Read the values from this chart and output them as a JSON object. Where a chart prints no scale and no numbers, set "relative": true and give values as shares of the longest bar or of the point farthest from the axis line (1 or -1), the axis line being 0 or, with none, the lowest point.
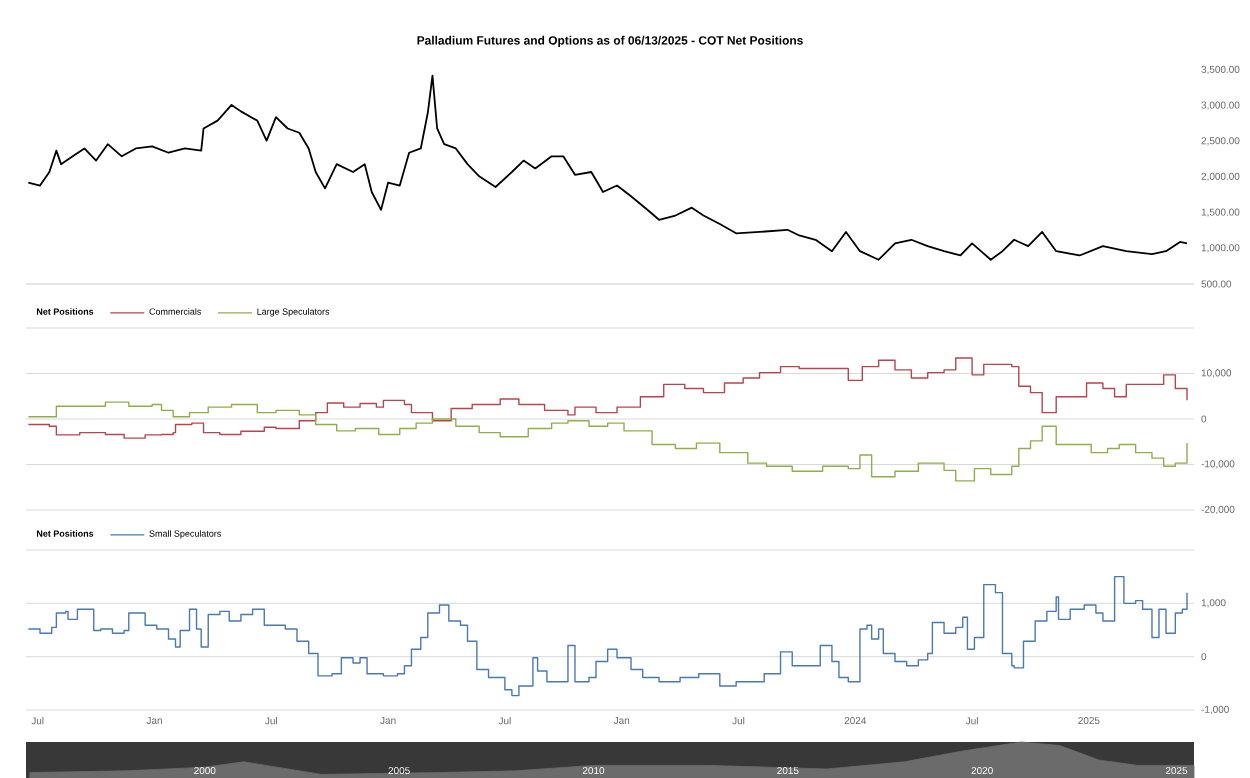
{
  "chart_data": [
    {
      "type": "line",
      "title": "Palladium Futures and Options as of 06/13/2025 - COT Net Positions",
      "xlim": [
        2020.45,
        2025.45
      ],
      "ylim": [
        500,
        3500
      ],
      "yticks": [
        {
          "value": 500,
          "label": "500.00"
        },
        {
          "value": 1000,
          "label": "1,000.00"
        },
        {
          "value": 1500,
          "label": "1,500.00"
        },
        {
          "value": 2000,
          "label": "2,000.00"
        },
        {
          "value": 2500,
          "label": "2,500.00"
        },
        {
          "value": 3000,
          "label": "3,000.00"
        },
        {
          "value": 3500,
          "label": "3,500.00"
        }
      ],
      "tick_labels": "y",
      "series": [
        {
          "color": "#000000",
          "x": [
            2020.46,
            2020.51,
            2020.55,
            2020.58,
            2020.6,
            2020.65,
            2020.7,
            2020.75,
            2020.8,
            2020.86,
            2020.92,
            2020.99,
            2021.06,
            2021.13,
            2021.2,
            2021.21,
            2021.27,
            2021.33,
            2021.37,
            2021.44,
            2021.48,
            2021.52,
            2021.57,
            2021.62,
            2021.66,
            2021.69,
            2021.73,
            2021.78,
            2021.85,
            2021.9,
            2021.93,
            2021.97,
            2022.0,
            2022.05,
            2022.09,
            2022.14,
            2022.17,
            2022.19,
            2022.21,
            2022.24,
            2022.29,
            2022.34,
            2022.39,
            2022.46,
            2022.53,
            2022.58,
            2022.63,
            2022.7,
            2022.75,
            2022.8,
            2022.87,
            2022.92,
            2022.98,
            2023.04,
            2023.11,
            2023.16,
            2023.23,
            2023.3,
            2023.35,
            2023.42,
            2023.49,
            2023.59,
            2023.71,
            2023.76,
            2023.83,
            2023.9,
            2023.96,
            2024.02,
            2024.1,
            2024.17,
            2024.24,
            2024.31,
            2024.38,
            2024.45,
            2024.5,
            2024.58,
            2024.63,
            2024.68,
            2024.74,
            2024.8,
            2024.86,
            2024.96,
            2025.06,
            2025.16,
            2025.27,
            2025.33,
            2025.39,
            2025.42
          ],
          "values": [
            1920,
            1880,
            2070,
            2370,
            2180,
            2290,
            2400,
            2230,
            2460,
            2290,
            2400,
            2430,
            2340,
            2400,
            2370,
            2680,
            2790,
            3010,
            2920,
            2790,
            2510,
            2840,
            2680,
            2620,
            2400,
            2070,
            1840,
            2180,
            2070,
            2180,
            1790,
            1540,
            1920,
            1880,
            2340,
            2400,
            2900,
            3420,
            2680,
            2460,
            2400,
            2180,
            2010,
            1860,
            2070,
            2230,
            2120,
            2290,
            2290,
            2030,
            2070,
            1790,
            1880,
            1730,
            1540,
            1400,
            1460,
            1570,
            1460,
            1340,
            1210,
            1230,
            1260,
            1180,
            1120,
            960,
            1230,
            960,
            840,
            1070,
            1120,
            1030,
            960,
            900,
            1070,
            840,
            960,
            1120,
            1030,
            1230,
            960,
            900,
            1030,
            960,
            920,
            960,
            1090,
            1070
          ]
        }
      ]
    },
    {
      "type": "step",
      "legend_title": "Net Positions",
      "legend": "top left",
      "grid": "y",
      "xlim": [
        2020.45,
        2025.45
      ],
      "ylim": [
        -20000,
        20000
      ],
      "yticks": [
        {
          "value": -20000,
          "label": "-20,000"
        },
        {
          "value": -10000,
          "label": "-10,000"
        },
        0,
        {
          "value": 10000,
          "label": "10,000"
        },
        {
          "value": 20000,
          "label": null
        }
      ],
      "tick_labels": "y",
      "series": [
        {
          "name": "Commercials",
          "color": "#b5454e",
          "x": [
            2020.46,
            2020.55,
            2020.58,
            2020.68,
            2020.79,
            2020.87,
            2020.96,
            2021.03,
            2021.08,
            2021.09,
            2021.16,
            2021.21,
            2021.28,
            2021.37,
            2021.47,
            2021.52,
            2021.62,
            2021.69,
            2021.74,
            2021.81,
            2021.88,
            2021.95,
            2021.98,
            2022.07,
            2022.1,
            2022.19,
            2022.27,
            2022.36,
            2022.48,
            2022.56,
            2022.67,
            2022.77,
            2022.8,
            2022.89,
            2022.98,
            2023.08,
            2023.18,
            2023.27,
            2023.35,
            2023.44,
            2023.52,
            2023.59,
            2023.68,
            2023.76,
            2023.86,
            2023.97,
            2024.03,
            2024.1,
            2024.17,
            2024.24,
            2024.31,
            2024.38,
            2024.43,
            2024.5,
            2024.55,
            2024.67,
            2024.7,
            2024.75,
            2024.8,
            2024.86,
            2024.92,
            2024.99,
            2025.06,
            2025.11,
            2025.16,
            2025.27,
            2025.32,
            2025.37,
            2025.42
          ],
          "values": [
            -1200,
            -1600,
            -3500,
            -3000,
            -3400,
            -4200,
            -3500,
            -3400,
            -3000,
            -1200,
            -900,
            -3000,
            -3400,
            -2700,
            -1800,
            -2100,
            -400,
            1400,
            3500,
            2600,
            3400,
            2600,
            4100,
            3200,
            1400,
            -400,
            2300,
            3200,
            4400,
            3200,
            1900,
            900,
            2600,
            1400,
            2600,
            4900,
            7600,
            6700,
            5800,
            7900,
            9000,
            10200,
            11500,
            11100,
            11100,
            8500,
            11500,
            12900,
            10800,
            9000,
            10200,
            10800,
            13400,
            9700,
            12000,
            11500,
            7200,
            5800,
            1400,
            4900,
            4900,
            7900,
            6700,
            4900,
            7600,
            7600,
            9700,
            6700,
            4100
          ]
        },
        {
          "name": "Large Speculators",
          "color": "#8fae4a",
          "x": [
            2020.46,
            2020.51,
            2020.58,
            2020.68,
            2020.79,
            2020.89,
            2020.99,
            2021.03,
            2021.08,
            2021.15,
            2021.23,
            2021.33,
            2021.44,
            2021.52,
            2021.62,
            2021.69,
            2021.78,
            2021.86,
            2021.96,
            2022.05,
            2022.12,
            2022.19,
            2022.29,
            2022.39,
            2022.48,
            2022.6,
            2022.7,
            2022.77,
            2022.86,
            2022.94,
            2023.01,
            2023.13,
            2023.23,
            2023.32,
            2023.42,
            2023.54,
            2023.62,
            2023.73,
            2023.86,
            2023.97,
            2024.02,
            2024.07,
            2024.17,
            2024.27,
            2024.38,
            2024.43,
            2024.51,
            2024.58,
            2024.67,
            2024.7,
            2024.75,
            2024.8,
            2024.86,
            2024.92,
            2025.01,
            2025.08,
            2025.13,
            2025.2,
            2025.27,
            2025.32,
            2025.37,
            2025.42
          ],
          "values": [
            500,
            500,
            2800,
            2800,
            3700,
            2800,
            3200,
            1900,
            500,
            1400,
            2600,
            3200,
            1400,
            1900,
            900,
            -1200,
            -2600,
            -2100,
            -3400,
            -2100,
            -900,
            0,
            -1600,
            -3000,
            -3900,
            -2100,
            -900,
            -400,
            -1600,
            -900,
            -2600,
            -5600,
            -6500,
            -5300,
            -7400,
            -9700,
            -10400,
            -11500,
            -10400,
            -10900,
            -7900,
            -12700,
            -11500,
            -9700,
            -11300,
            -13600,
            -10900,
            -12200,
            -10400,
            -6500,
            -4800,
            -1600,
            -5600,
            -5600,
            -7400,
            -6500,
            -5600,
            -7400,
            -8600,
            -10400,
            -9700,
            -5300
          ]
        }
      ]
    },
    {
      "type": "step",
      "legend_title": "Net Positions",
      "legend": "top left",
      "grid": "y",
      "xlim": [
        2020.45,
        2025.45
      ],
      "xticks": [
        {
          "value": 2020.5,
          "label": "Jul"
        },
        {
          "value": 2021.0,
          "label": "Jan"
        },
        {
          "value": 2021.5,
          "label": "Jul"
        },
        {
          "value": 2022.0,
          "label": "Jan"
        },
        {
          "value": 2022.5,
          "label": "Jul"
        },
        {
          "value": 2023.0,
          "label": "Jan"
        },
        {
          "value": 2023.5,
          "label": "Jul"
        },
        {
          "value": 2024.0,
          "label": "2024"
        },
        {
          "value": 2024.5,
          "label": "Jul"
        },
        {
          "value": 2025.0,
          "label": "2025"
        }
      ],
      "ylim": [
        -1000,
        2000
      ],
      "yticks": [
        {
          "value": -1000,
          "label": "-1,000"
        },
        0,
        {
          "value": 1000,
          "label": "1,000"
        },
        {
          "value": 2000,
          "label": null
        }
      ],
      "series": [
        {
          "name": "Small Speculators",
          "color": "#4a78b0",
          "x": [
            2020.46,
            2020.51,
            2020.56,
            2020.58,
            2020.62,
            2020.63,
            2020.67,
            2020.72,
            2020.74,
            2020.77,
            2020.82,
            2020.87,
            2020.89,
            2020.94,
            2020.96,
            2021.01,
            2021.06,
            2021.09,
            2021.11,
            2021.15,
            2021.18,
            2021.2,
            2021.23,
            2021.28,
            2021.32,
            2021.37,
            2021.42,
            2021.47,
            2021.56,
            2021.61,
            2021.66,
            2021.7,
            2021.76,
            2021.8,
            2021.85,
            2021.88,
            2021.91,
            2021.98,
            2022.04,
            2022.07,
            2022.1,
            2022.14,
            2022.17,
            2022.22,
            2022.26,
            2022.31,
            2022.34,
            2022.38,
            2022.43,
            2022.5,
            2022.53,
            2022.56,
            2022.62,
            2022.64,
            2022.68,
            2022.74,
            2022.77,
            2022.8,
            2022.86,
            2022.89,
            2022.94,
            2022.98,
            2023.04,
            2023.09,
            2023.16,
            2023.25,
            2023.33,
            2023.42,
            2023.49,
            2023.56,
            2023.61,
            2023.68,
            2023.73,
            2023.8,
            2023.85,
            2023.9,
            2023.93,
            2023.97,
            2024.02,
            2024.05,
            2024.07,
            2024.1,
            2024.12,
            2024.17,
            2024.22,
            2024.27,
            2024.31,
            2024.33,
            2024.38,
            2024.43,
            2024.46,
            2024.48,
            2024.51,
            2024.55,
            2024.6,
            2024.63,
            2024.67,
            2024.68,
            2024.72,
            2024.77,
            2024.82,
            2024.86,
            2024.87,
            2024.92,
            2024.98,
            2025.03,
            2025.06,
            2025.11,
            2025.15,
            2025.2,
            2025.23,
            2025.27,
            2025.3,
            2025.33,
            2025.37,
            2025.4,
            2025.42
          ],
          "values": [
            520,
            440,
            550,
            820,
            850,
            700,
            890,
            890,
            490,
            520,
            440,
            490,
            820,
            820,
            590,
            520,
            330,
            180,
            490,
            890,
            520,
            180,
            790,
            850,
            670,
            790,
            890,
            590,
            520,
            290,
            60,
            -360,
            -320,
            -20,
            -120,
            -20,
            -320,
            -360,
            -320,
            -170,
            140,
            360,
            820,
            970,
            670,
            590,
            290,
            -240,
            -390,
            -620,
            -730,
            -550,
            -20,
            -270,
            -470,
            -470,
            210,
            -470,
            -390,
            -90,
            140,
            -20,
            -240,
            -390,
            -470,
            -390,
            -320,
            -550,
            -470,
            -470,
            -320,
            90,
            -170,
            -170,
            210,
            -90,
            -390,
            -470,
            520,
            590,
            330,
            520,
            60,
            -90,
            -170,
            -60,
            60,
            640,
            440,
            550,
            740,
            140,
            360,
            1350,
            1200,
            60,
            -170,
            -210,
            290,
            670,
            850,
            1120,
            700,
            890,
            970,
            820,
            670,
            1500,
            1000,
            1050,
            890,
            360,
            890,
            440,
            820,
            890,
            1200
          ]
        }
      ]
    },
    {
      "type": "area",
      "relative": true,
      "xlim": [
        1995.4,
        2025.45
      ],
      "xticks": [
        2000,
        2005,
        2010,
        2015,
        2020,
        2025
      ],
      "tick_labels": "x",
      "series": [
        {
          "color": "#6b6b6b",
          "x": [
            1995.5,
            1998,
            2000,
            2001,
            2003,
            2006,
            2008,
            2010,
            2013,
            2016,
            2018,
            2019.5,
            2021,
            2022,
            2023,
            2024,
            2025.45
          ],
          "values": [
            0.15,
            0.2,
            0.3,
            0.45,
            0.1,
            0.15,
            0.2,
            0.35,
            0.35,
            0.25,
            0.45,
            0.75,
            1.0,
            0.9,
            0.5,
            0.35,
            0.35
          ]
        }
      ]
    }
  ]
}
